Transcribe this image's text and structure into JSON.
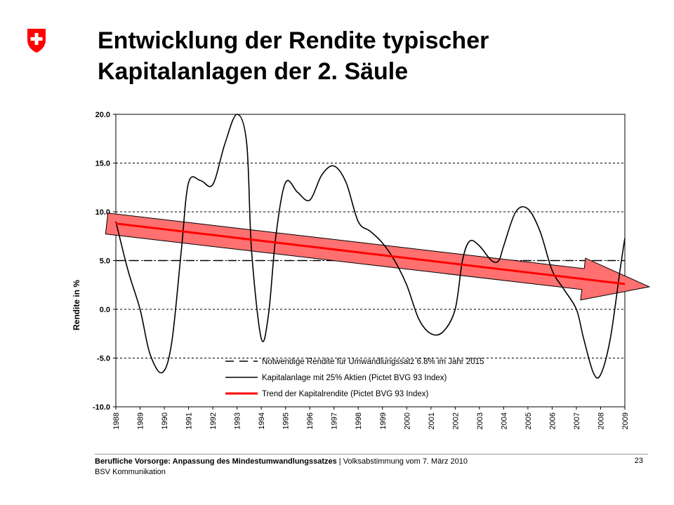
{
  "header": {
    "title_line1": "Entwicklung der Rendite typischer",
    "title_line2": "Kapitalanlagen der 2. Säule"
  },
  "footer": {
    "topic": "Berufliche Vorsorge: Anpassung des Mindestumwandlungssatzes",
    "event": "Volksabstimmung vom 7. März 2010",
    "org": "BSV Kommunikation",
    "page": "23"
  },
  "colors": {
    "trend": "#ff0000",
    "arrow_fill": "#ff7070",
    "line": "#000000",
    "logo_red": "#ff0000"
  },
  "chart_data": {
    "type": "line",
    "ylabel": "Rendite in %",
    "xlabel": "",
    "ylim": [
      -10,
      20
    ],
    "yticks": [
      "20.0",
      "15.0",
      "10.0",
      "5.0",
      "0.0",
      "-5.0",
      "-10.0"
    ],
    "categories": [
      "1988",
      "1989",
      "1990",
      "1991",
      "1992",
      "1993",
      "1994",
      "1995",
      "1996",
      "1997",
      "1998",
      "1999",
      "2000",
      "2001",
      "2002",
      "2003",
      "2004",
      "2005",
      "2006",
      "2007",
      "2008",
      "2009"
    ],
    "grid": true,
    "legend_position": "bottom-right",
    "series": [
      {
        "name": "Notwendige Rendite für Umwandlungssatz 6.8% im Jahr 2015",
        "style": "dashed",
        "points": [
          [
            1988,
            5.0
          ],
          [
            2009,
            5.0
          ]
        ]
      },
      {
        "name": "Kapitalanlage mit 25% Aktien (Pictet BVG 93 Index)",
        "style": "solid",
        "points": [
          [
            1988,
            9.0
          ],
          [
            1988.5,
            4.0
          ],
          [
            1989,
            0.0
          ],
          [
            1989.4,
            -4.5
          ],
          [
            1989.9,
            -6.5
          ],
          [
            1990.3,
            -3.5
          ],
          [
            1990.7,
            6.0
          ],
          [
            1991,
            13.0
          ],
          [
            1991.5,
            13.2
          ],
          [
            1992,
            12.8
          ],
          [
            1992.5,
            17.0
          ],
          [
            1993,
            20.0
          ],
          [
            1993.4,
            17.0
          ],
          [
            1993.6,
            6.0
          ],
          [
            1994,
            -3.0
          ],
          [
            1994.3,
            -0.5
          ],
          [
            1994.6,
            7.5
          ],
          [
            1995,
            13.0
          ],
          [
            1995.5,
            12.0
          ],
          [
            1996,
            11.2
          ],
          [
            1996.5,
            13.8
          ],
          [
            1997,
            14.7
          ],
          [
            1997.5,
            13.0
          ],
          [
            1998,
            9.0
          ],
          [
            1998.5,
            8.0
          ],
          [
            1999,
            6.8
          ],
          [
            1999.5,
            5.0
          ],
          [
            2000,
            2.5
          ],
          [
            2000.5,
            -1.0
          ],
          [
            2001,
            -2.5
          ],
          [
            2001.5,
            -2.3
          ],
          [
            2002,
            0.0
          ],
          [
            2002.3,
            5.0
          ],
          [
            2002.6,
            7.0
          ],
          [
            2003,
            6.5
          ],
          [
            2003.5,
            5.0
          ],
          [
            2003.8,
            5.0
          ],
          [
            2004,
            6.5
          ],
          [
            2004.5,
            10.0
          ],
          [
            2005,
            10.3
          ],
          [
            2005.5,
            8.0
          ],
          [
            2006,
            4.0
          ],
          [
            2006.5,
            2.0
          ],
          [
            2007,
            0.0
          ],
          [
            2007.3,
            -3.0
          ],
          [
            2007.7,
            -6.5
          ],
          [
            2008,
            -6.7
          ],
          [
            2008.4,
            -3.0
          ],
          [
            2008.8,
            4.0
          ],
          [
            2009,
            7.3
          ]
        ]
      },
      {
        "name": "Trend der Kapitalrendite (Pictet BVG 93 Index)",
        "style": "trend",
        "points": [
          [
            1988,
            8.8
          ],
          [
            2009,
            2.6
          ]
        ]
      }
    ],
    "annotation": {
      "type": "arrow",
      "from": [
        1988,
        8.8
      ],
      "to": [
        2009,
        2.6
      ]
    }
  }
}
